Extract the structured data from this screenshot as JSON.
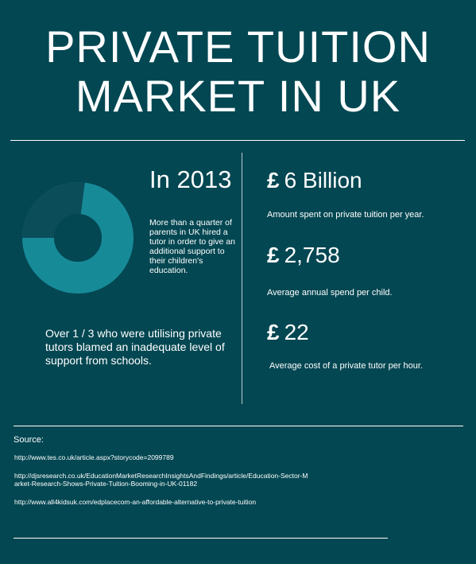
{
  "title": {
    "line1": "PRIVATE TUITION",
    "line2": "MARKET IN UK"
  },
  "left_panel": {
    "year": "In 2013",
    "quarter_text": "More than a quarter of parents in UK hired a tutor in order to give an additional support to their children's education.",
    "third_text": "Over 1 / 3 who were utilising private tutors blamed an inadequate level of support from schools.",
    "donut": {
      "highlight_fraction": 0.27,
      "highlight_color": "#0c4d5a",
      "ring_color": "#178a98",
      "center_color": "#034752"
    }
  },
  "stats": [
    {
      "currency": "£",
      "value": "6 Billion",
      "description": "Amount spent on private tuition per year."
    },
    {
      "currency": "£",
      "value": "2,758",
      "description": "Average annual spend per child."
    },
    {
      "currency": "£",
      "value": "22",
      "description": "Average cost of a private tutor per hour."
    }
  ],
  "sources": {
    "label": "Source:",
    "links": [
      "http://www.tes.co.uk/article.aspx?storycode=2099789",
      "http://djsresearch.co.uk/EducationMarketResearchInsightsAndFindings/article/Education-Sector-Market-Research-Shows-Private-Tuition-Booming-in-UK-01182",
      "http://www.all4kidsuk.com/edplacecom-an-affordable-alternative-to-private-tuition"
    ]
  },
  "colors": {
    "background": "#034752",
    "text": "#ffffff"
  }
}
